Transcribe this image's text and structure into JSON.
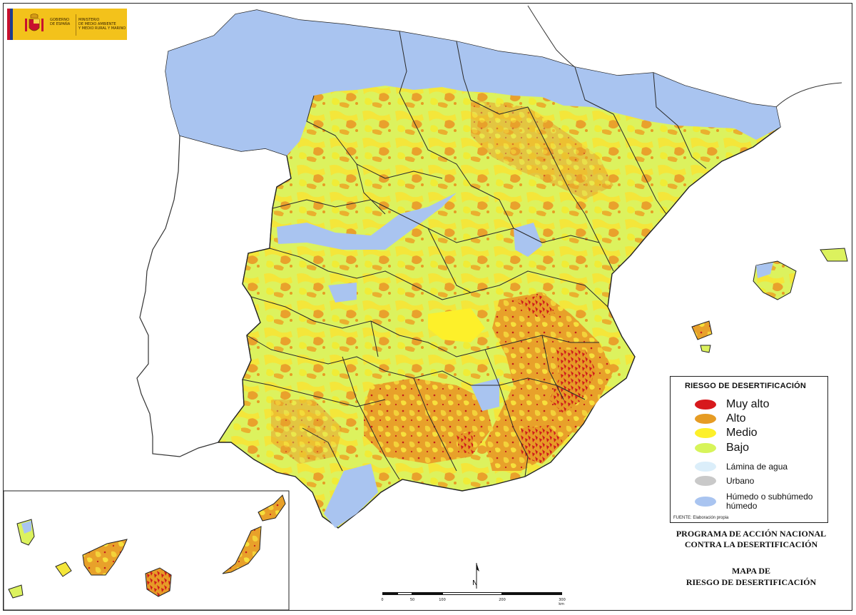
{
  "map": {
    "title_line1": "MAPA DE",
    "title_line2": "RIESGO DE DESERTIFICACIÓN"
  },
  "program": {
    "line1": "PROGRAMA DE ACCIÓN NACIONAL",
    "line2": "CONTRA LA DESERTIFICACIÓN"
  },
  "logo": {
    "gov_line1": "GOBIERNO",
    "gov_line2": "DE ESPAÑA",
    "ministry_line1": "MINISTERIO",
    "ministry_line2": "DE MEDIO AMBIENTE",
    "ministry_line3": "Y MEDIO RURAL Y MARINO",
    "colors": {
      "yellow": "#f3c21b",
      "red": "#c8102e",
      "blue": "#1d3d8f"
    }
  },
  "legend": {
    "title": "RIESGO DE DESERTIFICACIÓN",
    "items": [
      {
        "label": "Muy alto",
        "color": "#d7191c"
      },
      {
        "label": "Alto",
        "color": "#e69c24"
      },
      {
        "label": "Medio",
        "color": "#fdf02a"
      },
      {
        "label": "Bajo",
        "color": "#d7f45a"
      },
      {
        "label": "Lámina de agua",
        "color": "#dbeefa"
      },
      {
        "label": "Urbano",
        "color": "#c9c9c9"
      },
      {
        "label": "Húmedo o subhúmedo",
        "label2": "húmedo",
        "color": "#a9c4f0"
      }
    ],
    "source": "FUENTE: Elaboración propia"
  },
  "scale": {
    "labels": [
      "0",
      "50",
      "100",
      "200",
      "300 km"
    ]
  },
  "north": {
    "letter": "N"
  }
}
